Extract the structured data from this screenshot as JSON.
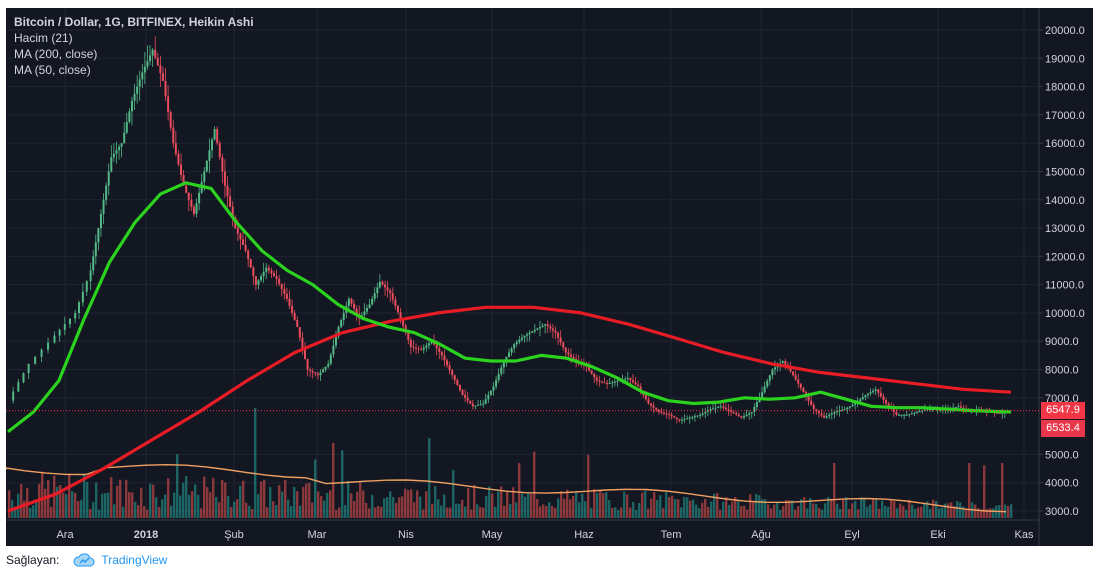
{
  "chart_data": {
    "type": "candlestick",
    "title": "Bitcoin / Dollar, 1G, BITFINEX, Heikin Ashi",
    "indicators": [
      "Hacim (21)",
      "MA (200, close)",
      "MA (50, close)"
    ],
    "x_ticks": [
      "Ara",
      "2018",
      "Şub",
      "Mar",
      "Nis",
      "May",
      "Haz",
      "Tem",
      "Ağu",
      "Eyl",
      "Eki",
      "Kas"
    ],
    "y_ticks": [
      "20000.0",
      "19000.0",
      "18000.0",
      "17000.0",
      "16000.0",
      "15000.0",
      "14000.0",
      "13000.0",
      "12000.0",
      "11000.0",
      "10000.0",
      "9000.0",
      "8000.0",
      "7000.0",
      "5000.0",
      "4000.0",
      "3000.0"
    ],
    "ylim": [
      2700,
      20600
    ],
    "last_price": "6547.9",
    "open_price": "6533.4",
    "price_path": [
      [
        0,
        6900
      ],
      [
        8,
        8200
      ],
      [
        18,
        9200
      ],
      [
        26,
        10000
      ],
      [
        32,
        11500
      ],
      [
        36,
        13500
      ],
      [
        40,
        15500
      ],
      [
        44,
        16000
      ],
      [
        48,
        17500
      ],
      [
        52,
        18500
      ],
      [
        56,
        19300
      ],
      [
        60,
        18200
      ],
      [
        64,
        16000
      ],
      [
        68,
        14500
      ],
      [
        72,
        13500
      ],
      [
        76,
        15000
      ],
      [
        80,
        16500
      ],
      [
        84,
        14500
      ],
      [
        88,
        13000
      ],
      [
        92,
        12200
      ],
      [
        96,
        11000
      ],
      [
        100,
        11600
      ],
      [
        104,
        11200
      ],
      [
        108,
        10500
      ],
      [
        112,
        9500
      ],
      [
        116,
        8000
      ],
      [
        120,
        7800
      ],
      [
        124,
        8200
      ],
      [
        128,
        9500
      ],
      [
        132,
        10500
      ],
      [
        136,
        9800
      ],
      [
        140,
        10300
      ],
      [
        144,
        11100
      ],
      [
        148,
        10700
      ],
      [
        152,
        9800
      ],
      [
        156,
        8800
      ],
      [
        160,
        8700
      ],
      [
        164,
        9000
      ],
      [
        168,
        8500
      ],
      [
        172,
        7800
      ],
      [
        176,
        7100
      ],
      [
        180,
        6700
      ],
      [
        184,
        6800
      ],
      [
        188,
        7400
      ],
      [
        192,
        8300
      ],
      [
        196,
        8900
      ],
      [
        200,
        9200
      ],
      [
        204,
        9400
      ],
      [
        208,
        9600
      ],
      [
        212,
        9300
      ],
      [
        216,
        8600
      ],
      [
        220,
        8300
      ],
      [
        224,
        8100
      ],
      [
        228,
        7600
      ],
      [
        232,
        7500
      ],
      [
        236,
        7600
      ],
      [
        240,
        7700
      ],
      [
        244,
        7400
      ],
      [
        248,
        6800
      ],
      [
        252,
        6500
      ],
      [
        256,
        6400
      ],
      [
        260,
        6200
      ],
      [
        264,
        6300
      ],
      [
        268,
        6400
      ],
      [
        272,
        6600
      ],
      [
        276,
        6700
      ],
      [
        280,
        6500
      ],
      [
        284,
        6300
      ],
      [
        288,
        6500
      ],
      [
        292,
        7200
      ],
      [
        296,
        8000
      ],
      [
        300,
        8300
      ],
      [
        304,
        7800
      ],
      [
        308,
        7200
      ],
      [
        312,
        6600
      ],
      [
        316,
        6300
      ],
      [
        320,
        6500
      ],
      [
        324,
        6600
      ],
      [
        328,
        6800
      ],
      [
        332,
        7100
      ],
      [
        336,
        7300
      ],
      [
        340,
        6800
      ],
      [
        344,
        6400
      ],
      [
        348,
        6400
      ],
      [
        352,
        6500
      ],
      [
        356,
        6600
      ],
      [
        360,
        6600
      ],
      [
        364,
        6600
      ],
      [
        368,
        6700
      ],
      [
        372,
        6500
      ],
      [
        376,
        6600
      ],
      [
        380,
        6500
      ],
      [
        384,
        6450
      ],
      [
        388,
        6550
      ]
    ],
    "ma200_path": [
      [
        0,
        3000
      ],
      [
        30,
        3600
      ],
      [
        60,
        4500
      ],
      [
        90,
        5500
      ],
      [
        120,
        6500
      ],
      [
        150,
        7600
      ],
      [
        180,
        8600
      ],
      [
        210,
        9300
      ],
      [
        240,
        9700
      ],
      [
        270,
        10000
      ],
      [
        300,
        10200
      ],
      [
        330,
        10200
      ],
      [
        360,
        10000
      ],
      [
        390,
        9600
      ],
      [
        420,
        9100
      ],
      [
        450,
        8600
      ],
      [
        480,
        8200
      ],
      [
        510,
        7900
      ],
      [
        540,
        7700
      ],
      [
        570,
        7500
      ],
      [
        600,
        7300
      ],
      [
        630,
        7200
      ]
    ],
    "ma50_path": [
      [
        0,
        5800
      ],
      [
        20,
        6500
      ],
      [
        40,
        7600
      ],
      [
        60,
        9800
      ],
      [
        80,
        11800
      ],
      [
        100,
        13200
      ],
      [
        120,
        14200
      ],
      [
        140,
        14600
      ],
      [
        160,
        14400
      ],
      [
        180,
        13200
      ],
      [
        200,
        12200
      ],
      [
        220,
        11500
      ],
      [
        240,
        11000
      ],
      [
        260,
        10300
      ],
      [
        280,
        9800
      ],
      [
        300,
        9500
      ],
      [
        320,
        9300
      ],
      [
        340,
        8900
      ],
      [
        360,
        8400
      ],
      [
        380,
        8300
      ],
      [
        400,
        8300
      ],
      [
        420,
        8500
      ],
      [
        440,
        8400
      ],
      [
        460,
        8100
      ],
      [
        480,
        7700
      ],
      [
        500,
        7200
      ],
      [
        520,
        6900
      ],
      [
        540,
        6800
      ],
      [
        560,
        6850
      ],
      [
        580,
        7000
      ],
      [
        600,
        6950
      ],
      [
        620,
        7000
      ],
      [
        640,
        7200
      ],
      [
        660,
        6950
      ],
      [
        680,
        6700
      ],
      [
        700,
        6650
      ],
      [
        720,
        6650
      ],
      [
        740,
        6600
      ],
      [
        760,
        6550
      ],
      [
        790,
        6500
      ]
    ],
    "volume_note": "volume bars + 21 MA at bottom"
  },
  "footer": {
    "provider_label": "Sağlayan:",
    "brand": "TradingView"
  }
}
